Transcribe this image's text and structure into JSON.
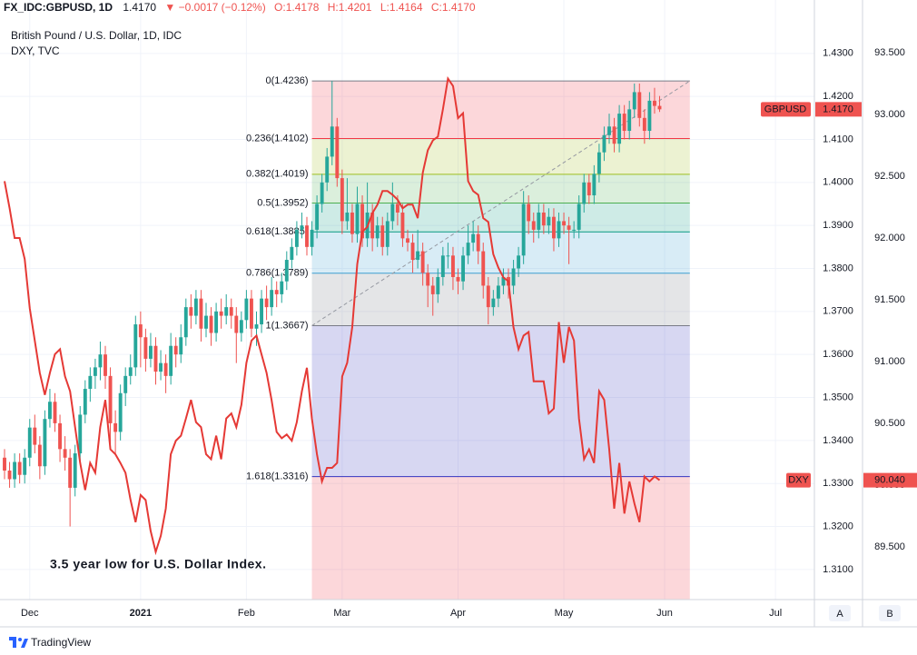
{
  "header": {
    "symbol": "FX_IDC:GBPUSD, 1D",
    "last": "1.4170",
    "change": "▼ −0.0017 (−0.12%)",
    "open": "O:1.4178",
    "high": "H:1.4201",
    "low": "L:1.4164",
    "close": "C:1.4170"
  },
  "controls": [
    "A",
    "B"
  ],
  "footer": {
    "brand": "TradingView"
  },
  "chart_data": {
    "type": "candlestick",
    "annotation": "3.5 year low for U.S. Dollar Index.",
    "xlim": [
      0,
      160
    ],
    "xticks": [
      {
        "value": 5,
        "label": "Dec"
      },
      {
        "value": 27,
        "label": "2021"
      },
      {
        "value": 48,
        "label": "Feb"
      },
      {
        "value": 67,
        "label": "Mar"
      },
      {
        "value": 90,
        "label": "Apr"
      },
      {
        "value": 111,
        "label": "May"
      },
      {
        "value": 131,
        "label": "Jun"
      },
      {
        "value": 153,
        "label": "Jul"
      }
    ],
    "ylim": [
      1.303,
      1.4382
    ],
    "yticks": [
      {
        "value": 1.31,
        "label": "1.3100"
      },
      {
        "value": 1.32,
        "label": "1.3200"
      },
      {
        "value": 1.33,
        "label": "1.3300"
      },
      {
        "value": 1.34,
        "label": "1.3400"
      },
      {
        "value": 1.35,
        "label": "1.3500"
      },
      {
        "value": 1.36,
        "label": "1.3600"
      },
      {
        "value": 1.37,
        "label": "1.3700"
      },
      {
        "value": 1.38,
        "label": "1.3800"
      },
      {
        "value": 1.39,
        "label": "1.3900"
      },
      {
        "value": 1.4,
        "label": "1.4000"
      },
      {
        "value": 1.41,
        "label": "1.4100"
      },
      {
        "value": 1.42,
        "label": "1.4200"
      },
      {
        "value": 1.43,
        "label": "1.4300"
      }
    ],
    "y2lim": [
      89.074,
      93.779
    ],
    "y2ticks": [
      {
        "value": 89.5,
        "label": "89.500"
      },
      {
        "value": 90,
        "label": "90.000"
      },
      {
        "value": 90.5,
        "label": "90.500"
      },
      {
        "value": 91,
        "label": "91.000"
      },
      {
        "value": 91.5,
        "label": "91.500"
      },
      {
        "value": 92,
        "label": "92.000"
      },
      {
        "value": 92.5,
        "label": "92.500"
      },
      {
        "value": 93,
        "label": "93.000"
      },
      {
        "value": 93.5,
        "label": "93.500"
      }
    ],
    "grid": true,
    "fib": {
      "start": 61,
      "end": 136,
      "extension_color": "#f23645",
      "trend_color": "#9598a1",
      "levels": [
        {
          "value": 1.4236,
          "label": "0(1.4236)",
          "color": "#787b86"
        },
        {
          "value": 1.4102,
          "label": "0.236(1.4102)",
          "color": "#f23645"
        },
        {
          "value": 1.4019,
          "label": "0.382(1.4019)",
          "color": "#9fbf1f"
        },
        {
          "value": 1.3952,
          "label": "0.5(1.3952)",
          "color": "#4caf50"
        },
        {
          "value": 1.3885,
          "label": "0.618(1.3885)",
          "color": "#089981"
        },
        {
          "value": 1.3789,
          "label": "0.786(1.3789)",
          "color": "#3d9fd0"
        },
        {
          "value": 1.3667,
          "label": "1(1.3667)",
          "color": "#787b86"
        },
        {
          "value": 1.3316,
          "label": "1.618(1.3316)",
          "color": "#3535c0"
        }
      ]
    },
    "series": [
      {
        "name": "British Pound / U.S. Dollar, 1D, IDC",
        "symbol": "GBPUSD",
        "up_color": "#26a69a",
        "down_color": "#ef5350",
        "tag_color": "#ef5350",
        "last_label": "1.4170",
        "ohlc": [
          [
            1.336,
            1.338,
            1.331,
            1.333
          ],
          [
            1.333,
            1.335,
            1.329,
            1.331
          ],
          [
            1.331,
            1.337,
            1.329,
            1.335
          ],
          [
            1.335,
            1.337,
            1.33,
            1.332
          ],
          [
            1.332,
            1.338,
            1.33,
            1.336
          ],
          [
            1.336,
            1.345,
            1.334,
            1.343
          ],
          [
            1.343,
            1.346,
            1.337,
            1.339
          ],
          [
            1.339,
            1.341,
            1.331,
            1.334
          ],
          [
            1.334,
            1.347,
            1.332,
            1.345
          ],
          [
            1.345,
            1.352,
            1.343,
            1.349
          ],
          [
            1.349,
            1.351,
            1.342,
            1.344
          ],
          [
            1.344,
            1.346,
            1.335,
            1.338
          ],
          [
            1.338,
            1.341,
            1.333,
            1.336
          ],
          [
            1.336,
            1.338,
            1.32,
            1.329
          ],
          [
            1.329,
            1.339,
            1.327,
            1.337
          ],
          [
            1.337,
            1.348,
            1.335,
            1.346
          ],
          [
            1.346,
            1.354,
            1.344,
            1.352
          ],
          [
            1.352,
            1.357,
            1.349,
            1.355
          ],
          [
            1.355,
            1.359,
            1.352,
            1.357
          ],
          [
            1.357,
            1.363,
            1.354,
            1.36
          ],
          [
            1.36,
            1.362,
            1.352,
            1.355
          ],
          [
            1.355,
            1.357,
            1.339,
            1.344
          ],
          [
            1.344,
            1.347,
            1.337,
            1.342
          ],
          [
            1.342,
            1.353,
            1.34,
            1.351
          ],
          [
            1.351,
            1.357,
            1.348,
            1.355
          ],
          [
            1.355,
            1.36,
            1.353,
            1.357
          ],
          [
            1.357,
            1.369,
            1.355,
            1.367
          ],
          [
            1.367,
            1.37,
            1.357,
            1.364
          ],
          [
            1.364,
            1.366,
            1.356,
            1.359
          ],
          [
            1.359,
            1.365,
            1.357,
            1.362
          ],
          [
            1.362,
            1.364,
            1.353,
            1.356
          ],
          [
            1.356,
            1.361,
            1.354,
            1.358
          ],
          [
            1.358,
            1.36,
            1.351,
            1.355
          ],
          [
            1.355,
            1.365,
            1.353,
            1.362
          ],
          [
            1.362,
            1.364,
            1.357,
            1.36
          ],
          [
            1.36,
            1.367,
            1.358,
            1.364
          ],
          [
            1.364,
            1.373,
            1.362,
            1.371
          ],
          [
            1.371,
            1.374,
            1.366,
            1.369
          ],
          [
            1.369,
            1.375,
            1.367,
            1.373
          ],
          [
            1.373,
            1.375,
            1.363,
            1.366
          ],
          [
            1.366,
            1.372,
            1.364,
            1.369
          ],
          [
            1.369,
            1.371,
            1.362,
            1.365
          ],
          [
            1.365,
            1.372,
            1.363,
            1.37
          ],
          [
            1.37,
            1.373,
            1.366,
            1.369
          ],
          [
            1.369,
            1.374,
            1.367,
            1.371
          ],
          [
            1.371,
            1.373,
            1.366,
            1.369
          ],
          [
            1.369,
            1.371,
            1.358,
            1.365
          ],
          [
            1.365,
            1.37,
            1.363,
            1.368
          ],
          [
            1.368,
            1.375,
            1.366,
            1.373
          ],
          [
            1.373,
            1.375,
            1.364,
            1.366
          ],
          [
            1.366,
            1.37,
            1.362,
            1.367
          ],
          [
            1.367,
            1.375,
            1.365,
            1.373
          ],
          [
            1.373,
            1.376,
            1.368,
            1.371
          ],
          [
            1.371,
            1.378,
            1.369,
            1.375
          ],
          [
            1.375,
            1.377,
            1.371,
            1.374
          ],
          [
            1.374,
            1.379,
            1.372,
            1.377
          ],
          [
            1.377,
            1.384,
            1.375,
            1.382
          ],
          [
            1.382,
            1.387,
            1.38,
            1.385
          ],
          [
            1.385,
            1.391,
            1.383,
            1.389
          ],
          [
            1.389,
            1.393,
            1.387,
            1.39
          ],
          [
            1.39,
            1.392,
            1.383,
            1.385
          ],
          [
            1.385,
            1.391,
            1.383,
            1.389
          ],
          [
            1.389,
            1.397,
            1.387,
            1.395
          ],
          [
            1.395,
            1.402,
            1.393,
            1.4
          ],
          [
            1.4,
            1.408,
            1.398,
            1.406
          ],
          [
            1.406,
            1.4236,
            1.404,
            1.413
          ],
          [
            1.413,
            1.415,
            1.399,
            1.401
          ],
          [
            1.401,
            1.403,
            1.388,
            1.391
          ],
          [
            1.391,
            1.401,
            1.389,
            1.393
          ],
          [
            1.393,
            1.395,
            1.386,
            1.388
          ],
          [
            1.388,
            1.399,
            1.386,
            1.395
          ],
          [
            1.395,
            1.397,
            1.385,
            1.387
          ],
          [
            1.387,
            1.4,
            1.385,
            1.393
          ],
          [
            1.393,
            1.395,
            1.384,
            1.387
          ],
          [
            1.387,
            1.392,
            1.385,
            1.39
          ],
          [
            1.39,
            1.392,
            1.383,
            1.385
          ],
          [
            1.385,
            1.393,
            1.383,
            1.391
          ],
          [
            1.391,
            1.4,
            1.389,
            1.395
          ],
          [
            1.395,
            1.397,
            1.39,
            1.393
          ],
          [
            1.393,
            1.395,
            1.385,
            1.387
          ],
          [
            1.387,
            1.389,
            1.384,
            1.386
          ],
          [
            1.386,
            1.388,
            1.379,
            1.382
          ],
          [
            1.382,
            1.389,
            1.38,
            1.384
          ],
          [
            1.384,
            1.386,
            1.376,
            1.379
          ],
          [
            1.379,
            1.381,
            1.371,
            1.376
          ],
          [
            1.376,
            1.378,
            1.369,
            1.374
          ],
          [
            1.374,
            1.38,
            1.372,
            1.378
          ],
          [
            1.378,
            1.385,
            1.376,
            1.383
          ],
          [
            1.383,
            1.386,
            1.38,
            1.383
          ],
          [
            1.383,
            1.385,
            1.375,
            1.378
          ],
          [
            1.378,
            1.38,
            1.374,
            1.377
          ],
          [
            1.377,
            1.385,
            1.375,
            1.383
          ],
          [
            1.383,
            1.39,
            1.381,
            1.386
          ],
          [
            1.386,
            1.391,
            1.384,
            1.388
          ],
          [
            1.388,
            1.39,
            1.381,
            1.384
          ],
          [
            1.384,
            1.386,
            1.373,
            1.376
          ],
          [
            1.376,
            1.378,
            1.367,
            1.371
          ],
          [
            1.371,
            1.375,
            1.369,
            1.373
          ],
          [
            1.373,
            1.378,
            1.371,
            1.376
          ],
          [
            1.376,
            1.38,
            1.374,
            1.378
          ],
          [
            1.378,
            1.38,
            1.373,
            1.376
          ],
          [
            1.376,
            1.382,
            1.374,
            1.38
          ],
          [
            1.38,
            1.385,
            1.378,
            1.383
          ],
          [
            1.383,
            1.398,
            1.381,
            1.395
          ],
          [
            1.395,
            1.397,
            1.388,
            1.391
          ],
          [
            1.391,
            1.393,
            1.386,
            1.389
          ],
          [
            1.389,
            1.395,
            1.387,
            1.393
          ],
          [
            1.393,
            1.395,
            1.388,
            1.39
          ],
          [
            1.39,
            1.394,
            1.388,
            1.392
          ],
          [
            1.392,
            1.394,
            1.384,
            1.387
          ],
          [
            1.387,
            1.393,
            1.385,
            1.391
          ],
          [
            1.391,
            1.393,
            1.388,
            1.39
          ],
          [
            1.39,
            1.392,
            1.381,
            1.389
          ],
          [
            1.389,
            1.391,
            1.387,
            1.389
          ],
          [
            1.389,
            1.397,
            1.387,
            1.395
          ],
          [
            1.395,
            1.402,
            1.393,
            1.4
          ],
          [
            1.4,
            1.402,
            1.395,
            1.397
          ],
          [
            1.397,
            1.404,
            1.395,
            1.402
          ],
          [
            1.402,
            1.409,
            1.4,
            1.407
          ],
          [
            1.407,
            1.413,
            1.405,
            1.411
          ],
          [
            1.411,
            1.416,
            1.409,
            1.413
          ],
          [
            1.413,
            1.415,
            1.407,
            1.409
          ],
          [
            1.409,
            1.418,
            1.407,
            1.416
          ],
          [
            1.416,
            1.418,
            1.41,
            1.412
          ],
          [
            1.412,
            1.419,
            1.41,
            1.417
          ],
          [
            1.417,
            1.423,
            1.415,
            1.421
          ],
          [
            1.421,
            1.423,
            1.413,
            1.415
          ],
          [
            1.415,
            1.417,
            1.409,
            1.412
          ],
          [
            1.412,
            1.421,
            1.41,
            1.419
          ],
          [
            1.419,
            1.422,
            1.416,
            1.4178
          ],
          [
            1.4178,
            1.4201,
            1.4164,
            1.417
          ]
        ]
      },
      {
        "name": "DXY, TVC",
        "symbol": "DXY",
        "axis": "y2",
        "color": "#e53935",
        "tag_color": "#ef5350",
        "last_label": "90.040",
        "values": [
          92.46,
          92.24,
          92.0,
          92.0,
          91.83,
          91.43,
          91.17,
          90.91,
          90.73,
          90.91,
          91.06,
          91.1,
          90.88,
          90.76,
          90.47,
          90.18,
          89.96,
          90.18,
          90.1,
          90.47,
          90.69,
          90.29,
          90.25,
          90.18,
          90.1,
          89.88,
          89.7,
          89.92,
          89.88,
          89.63,
          89.46,
          89.59,
          89.81,
          90.25,
          90.36,
          90.4,
          90.54,
          90.69,
          90.51,
          90.47,
          90.25,
          90.21,
          90.4,
          90.21,
          90.54,
          90.58,
          90.47,
          90.65,
          90.99,
          91.17,
          91.21,
          91.06,
          90.91,
          90.69,
          90.43,
          90.38,
          90.41,
          90.36,
          90.51,
          90.76,
          90.95,
          90.54,
          90.25,
          90.03,
          90.14,
          90.14,
          90.18,
          90.88,
          90.99,
          91.28,
          91.79,
          92.05,
          92.09,
          92.2,
          92.27,
          92.38,
          92.38,
          92.35,
          92.31,
          92.24,
          92.27,
          92.27,
          92.16,
          92.53,
          92.71,
          92.79,
          92.82,
          93.04,
          93.29,
          93.23,
          92.97,
          93.01,
          92.46,
          92.38,
          92.35,
          92.16,
          92.13,
          91.87,
          91.76,
          91.68,
          91.65,
          91.28,
          91.1,
          91.21,
          91.24,
          90.84,
          90.84,
          90.84,
          90.58,
          90.62,
          91.32,
          90.99,
          91.28,
          91.17,
          90.54,
          90.21,
          90.29,
          90.18,
          90.76,
          90.69,
          90.29,
          89.81,
          90.18,
          89.77,
          90.03,
          89.85,
          89.7,
          90.07,
          90.03,
          90.07,
          90.04
        ]
      }
    ]
  }
}
